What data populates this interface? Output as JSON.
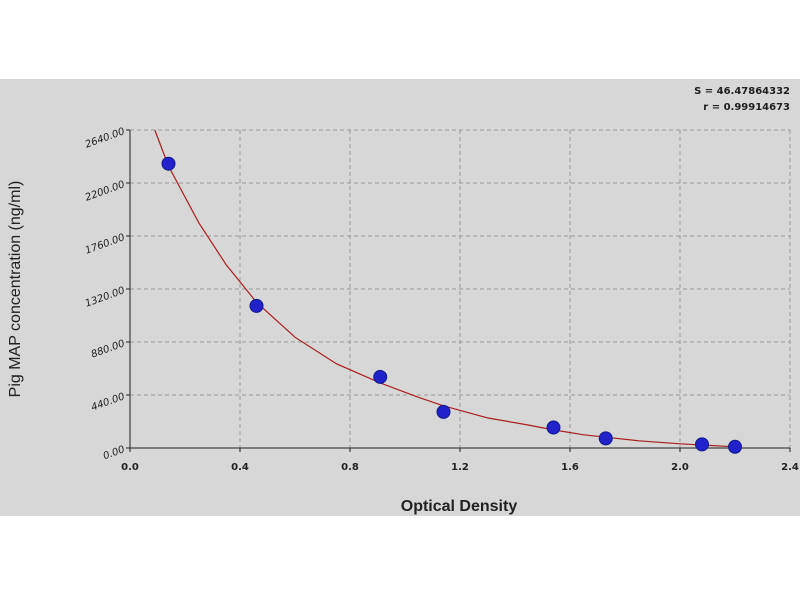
{
  "stats": {
    "s_line": "S = 46.47864332",
    "r_line": "r = 0.99914673"
  },
  "chart_data": {
    "type": "scatter",
    "xlabel": "Optical Density",
    "ylabel": "Pig MAP concentration (ng/ml)",
    "xlim": [
      0.0,
      2.4
    ],
    "ylim": [
      0.0,
      2640.0
    ],
    "x_ticks": [
      "0.0",
      "0.4",
      "0.8",
      "1.2",
      "1.6",
      "2.0",
      "2.4"
    ],
    "y_ticks": [
      "0.00",
      "440.00",
      "880.00",
      "1320.00",
      "1760.00",
      "2200.00",
      "2640.00"
    ],
    "grid": true,
    "points": {
      "x": [
        0.14,
        0.46,
        0.91,
        1.14,
        1.54,
        1.73,
        2.08,
        2.2
      ],
      "y": [
        2360,
        1180,
        590,
        300,
        170,
        80,
        30,
        10
      ]
    },
    "curve": {
      "x": [
        0.09,
        0.14,
        0.25,
        0.35,
        0.46,
        0.6,
        0.75,
        0.91,
        1.05,
        1.14,
        1.3,
        1.45,
        1.54,
        1.65,
        1.73,
        1.85,
        2.0,
        2.08,
        2.2
      ],
      "y": [
        2640,
        2340,
        1870,
        1520,
        1210,
        920,
        700,
        540,
        420,
        350,
        250,
        190,
        150,
        110,
        90,
        60,
        35,
        25,
        10
      ]
    },
    "colors": {
      "points": "#2222cc",
      "curve": "#aa1e1e",
      "grid": "#9a9a9a",
      "panel": "#d7d7d7"
    }
  }
}
